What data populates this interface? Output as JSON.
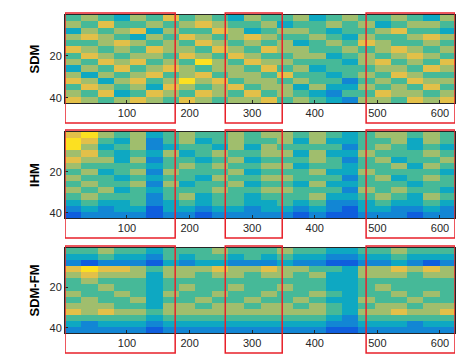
{
  "chart_data": [
    {
      "type": "heatmap",
      "ylabel": "SDM",
      "x": [
        14,
        40,
        66,
        92,
        118,
        144,
        170,
        196,
        222,
        248,
        274,
        300,
        326,
        352,
        378,
        404,
        430,
        456,
        482,
        508,
        534,
        560,
        586,
        612
      ],
      "y": [
        2,
        5,
        8,
        11,
        14,
        17,
        20,
        23,
        26,
        29,
        32,
        35,
        38,
        41
      ],
      "xlim": [
        1,
        624
      ],
      "ylim": [
        42.5,
        0.5
      ],
      "xticks": [
        100,
        200,
        300,
        400,
        500,
        600
      ],
      "yticks": [
        20,
        40
      ],
      "zlim": [
        0.1,
        0.85
      ],
      "regions": {
        "color": "#e8202a",
        "x": [
          [
            1,
            177
          ],
          [
            257,
            348
          ],
          [
            482,
            624
          ]
        ]
      },
      "z": [
        [
          0.5,
          0.6,
          0.5,
          0.4,
          0.6,
          0.5,
          0.7,
          0.5,
          0.6,
          0.5,
          0.4,
          0.6,
          0.5,
          0.5,
          0.6,
          0.4,
          0.5,
          0.6,
          0.5,
          0.5,
          0.6,
          0.5,
          0.4,
          0.6
        ],
        [
          0.6,
          0.5,
          0.7,
          0.5,
          0.5,
          0.6,
          0.5,
          0.6,
          0.7,
          0.6,
          0.5,
          0.5,
          0.6,
          0.4,
          0.5,
          0.5,
          0.6,
          0.5,
          0.6,
          0.4,
          0.5,
          0.6,
          0.6,
          0.5
        ],
        [
          0.4,
          0.6,
          0.5,
          0.6,
          0.7,
          0.4,
          0.6,
          0.5,
          0.5,
          0.7,
          0.6,
          0.4,
          0.5,
          0.6,
          0.6,
          0.5,
          0.4,
          0.5,
          0.5,
          0.6,
          0.7,
          0.5,
          0.5,
          0.4
        ],
        [
          0.6,
          0.7,
          0.6,
          0.5,
          0.4,
          0.6,
          0.5,
          0.7,
          0.6,
          0.5,
          0.6,
          0.7,
          0.6,
          0.5,
          0.5,
          0.6,
          0.5,
          0.4,
          0.6,
          0.5,
          0.5,
          0.6,
          0.7,
          0.6
        ],
        [
          0.5,
          0.5,
          0.6,
          0.7,
          0.6,
          0.5,
          0.6,
          0.5,
          0.7,
          0.6,
          0.5,
          0.6,
          0.5,
          0.6,
          0.4,
          0.5,
          0.6,
          0.5,
          0.7,
          0.6,
          0.5,
          0.5,
          0.6,
          0.5
        ],
        [
          0.7,
          0.6,
          0.5,
          0.6,
          0.5,
          0.7,
          0.6,
          0.6,
          0.5,
          0.7,
          0.6,
          0.5,
          0.7,
          0.6,
          0.6,
          0.5,
          0.5,
          0.6,
          0.5,
          0.6,
          0.7,
          0.6,
          0.5,
          0.6
        ],
        [
          0.5,
          0.7,
          0.6,
          0.5,
          0.6,
          0.6,
          0.5,
          0.7,
          0.6,
          0.5,
          0.7,
          0.6,
          0.5,
          0.5,
          0.6,
          0.6,
          0.4,
          0.5,
          0.6,
          0.5,
          0.6,
          0.7,
          0.6,
          0.5
        ],
        [
          0.6,
          0.5,
          0.7,
          0.6,
          0.7,
          0.5,
          0.6,
          0.5,
          0.8,
          0.6,
          0.5,
          0.7,
          0.6,
          0.6,
          0.5,
          0.5,
          0.5,
          0.4,
          0.6,
          0.7,
          0.5,
          0.6,
          0.5,
          0.7
        ],
        [
          0.4,
          0.6,
          0.5,
          0.7,
          0.5,
          0.6,
          0.7,
          0.6,
          0.5,
          0.6,
          0.6,
          0.5,
          0.7,
          0.5,
          0.6,
          0.4,
          0.5,
          0.5,
          0.5,
          0.6,
          0.6,
          0.5,
          0.7,
          0.6
        ],
        [
          0.6,
          0.4,
          0.6,
          0.5,
          0.6,
          0.7,
          0.5,
          0.6,
          0.7,
          0.5,
          0.6,
          0.6,
          0.5,
          0.7,
          0.5,
          0.5,
          0.4,
          0.5,
          0.6,
          0.5,
          0.7,
          0.6,
          0.5,
          0.5
        ],
        [
          0.7,
          0.6,
          0.4,
          0.6,
          0.7,
          0.5,
          0.6,
          0.8,
          0.6,
          0.7,
          0.5,
          0.6,
          0.6,
          0.5,
          0.6,
          0.5,
          0.5,
          0.3,
          0.5,
          0.6,
          0.5,
          0.7,
          0.6,
          0.6
        ],
        [
          0.5,
          0.7,
          0.6,
          0.5,
          0.6,
          0.4,
          0.7,
          0.6,
          0.5,
          0.6,
          0.7,
          0.5,
          0.6,
          0.6,
          0.4,
          0.6,
          0.4,
          0.4,
          0.6,
          0.5,
          0.6,
          0.5,
          0.7,
          0.5
        ],
        [
          0.6,
          0.5,
          0.7,
          0.4,
          0.5,
          0.7,
          0.6,
          0.5,
          0.7,
          0.6,
          0.5,
          0.7,
          0.5,
          0.6,
          0.5,
          0.4,
          0.3,
          0.5,
          0.5,
          0.7,
          0.6,
          0.6,
          0.5,
          0.6
        ],
        [
          0.7,
          0.6,
          0.5,
          0.6,
          0.7,
          0.6,
          0.5,
          0.7,
          0.6,
          0.5,
          0.6,
          0.6,
          0.7,
          0.5,
          0.6,
          0.5,
          0.4,
          0.3,
          0.6,
          0.6,
          0.5,
          0.7,
          0.6,
          0.7
        ]
      ]
    },
    {
      "type": "heatmap",
      "ylabel": "IHM",
      "x": [
        14,
        40,
        66,
        92,
        118,
        144,
        170,
        196,
        222,
        248,
        274,
        300,
        326,
        352,
        378,
        404,
        430,
        456,
        482,
        508,
        534,
        560,
        586,
        612
      ],
      "y": [
        2,
        5,
        8,
        11,
        14,
        17,
        20,
        23,
        26,
        29,
        32,
        35,
        38,
        41
      ],
      "xlim": [
        1,
        624
      ],
      "ylim": [
        42.5,
        0.5
      ],
      "xticks": [
        100,
        200,
        300,
        400,
        500,
        600
      ],
      "yticks": [
        20,
        40
      ],
      "zlim": [
        0.1,
        0.85
      ],
      "regions": {
        "color": "#e8202a",
        "x": [
          [
            1,
            177
          ],
          [
            257,
            348
          ],
          [
            482,
            624
          ]
        ]
      },
      "z": [
        [
          0.7,
          0.8,
          0.6,
          0.5,
          0.6,
          0.4,
          0.5,
          0.6,
          0.5,
          0.5,
          0.6,
          0.5,
          0.6,
          0.6,
          0.5,
          0.6,
          0.5,
          0.4,
          0.5,
          0.6,
          0.6,
          0.5,
          0.6,
          0.5
        ],
        [
          0.8,
          0.7,
          0.5,
          0.4,
          0.6,
          0.3,
          0.5,
          0.6,
          0.4,
          0.5,
          0.6,
          0.5,
          0.5,
          0.6,
          0.4,
          0.6,
          0.4,
          0.4,
          0.5,
          0.5,
          0.6,
          0.4,
          0.6,
          0.5
        ],
        [
          0.8,
          0.6,
          0.4,
          0.5,
          0.6,
          0.3,
          0.4,
          0.5,
          0.5,
          0.4,
          0.6,
          0.4,
          0.6,
          0.5,
          0.5,
          0.5,
          0.5,
          0.3,
          0.5,
          0.6,
          0.5,
          0.4,
          0.5,
          0.4
        ],
        [
          0.6,
          0.7,
          0.5,
          0.4,
          0.5,
          0.4,
          0.6,
          0.4,
          0.5,
          0.6,
          0.5,
          0.5,
          0.6,
          0.6,
          0.4,
          0.6,
          0.4,
          0.4,
          0.6,
          0.5,
          0.5,
          0.5,
          0.6,
          0.5
        ],
        [
          0.7,
          0.6,
          0.6,
          0.4,
          0.6,
          0.3,
          0.5,
          0.5,
          0.4,
          0.5,
          0.6,
          0.4,
          0.5,
          0.5,
          0.5,
          0.6,
          0.5,
          0.3,
          0.5,
          0.6,
          0.4,
          0.5,
          0.5,
          0.6
        ],
        [
          0.6,
          0.5,
          0.5,
          0.5,
          0.5,
          0.4,
          0.5,
          0.6,
          0.5,
          0.6,
          0.5,
          0.5,
          0.6,
          0.6,
          0.4,
          0.5,
          0.5,
          0.4,
          0.5,
          0.5,
          0.6,
          0.4,
          0.6,
          0.5
        ],
        [
          0.5,
          0.6,
          0.4,
          0.5,
          0.6,
          0.3,
          0.6,
          0.5,
          0.5,
          0.5,
          0.6,
          0.4,
          0.5,
          0.5,
          0.5,
          0.6,
          0.4,
          0.4,
          0.6,
          0.5,
          0.5,
          0.5,
          0.5,
          0.4
        ],
        [
          0.6,
          0.5,
          0.5,
          0.4,
          0.5,
          0.4,
          0.5,
          0.5,
          0.4,
          0.6,
          0.5,
          0.5,
          0.6,
          0.6,
          0.5,
          0.5,
          0.5,
          0.3,
          0.5,
          0.6,
          0.4,
          0.5,
          0.6,
          0.5
        ],
        [
          0.5,
          0.6,
          0.5,
          0.5,
          0.6,
          0.3,
          0.6,
          0.4,
          0.5,
          0.5,
          0.6,
          0.4,
          0.5,
          0.5,
          0.4,
          0.6,
          0.4,
          0.4,
          0.5,
          0.5,
          0.5,
          0.4,
          0.5,
          0.5
        ],
        [
          0.6,
          0.5,
          0.6,
          0.4,
          0.5,
          0.4,
          0.5,
          0.5,
          0.5,
          0.6,
          0.5,
          0.5,
          0.6,
          0.6,
          0.5,
          0.5,
          0.5,
          0.3,
          0.6,
          0.5,
          0.6,
          0.5,
          0.5,
          0.4
        ],
        [
          0.5,
          0.6,
          0.5,
          0.5,
          0.5,
          0.3,
          0.5,
          0.6,
          0.4,
          0.5,
          0.5,
          0.4,
          0.5,
          0.5,
          0.5,
          0.6,
          0.4,
          0.4,
          0.5,
          0.6,
          0.5,
          0.4,
          0.6,
          0.5
        ],
        [
          0.4,
          0.5,
          0.4,
          0.4,
          0.5,
          0.3,
          0.4,
          0.5,
          0.4,
          0.5,
          0.5,
          0.4,
          0.4,
          0.5,
          0.4,
          0.5,
          0.3,
          0.3,
          0.4,
          0.5,
          0.4,
          0.4,
          0.5,
          0.4
        ],
        [
          0.3,
          0.4,
          0.3,
          0.4,
          0.4,
          0.2,
          0.4,
          0.4,
          0.3,
          0.4,
          0.4,
          0.3,
          0.4,
          0.4,
          0.3,
          0.4,
          0.3,
          0.2,
          0.4,
          0.4,
          0.3,
          0.3,
          0.4,
          0.3
        ],
        [
          0.2,
          0.3,
          0.3,
          0.3,
          0.3,
          0.2,
          0.3,
          0.3,
          0.2,
          0.3,
          0.3,
          0.3,
          0.3,
          0.3,
          0.2,
          0.3,
          0.2,
          0.2,
          0.3,
          0.3,
          0.3,
          0.2,
          0.3,
          0.3
        ]
      ]
    },
    {
      "type": "heatmap",
      "ylabel": "SDM-FM",
      "x": [
        14,
        40,
        66,
        92,
        118,
        144,
        170,
        196,
        222,
        248,
        274,
        300,
        326,
        352,
        378,
        404,
        430,
        456,
        482,
        508,
        534,
        560,
        586,
        612
      ],
      "y": [
        2,
        5,
        8,
        11,
        14,
        17,
        20,
        23,
        26,
        29,
        32,
        35,
        38,
        41
      ],
      "xlim": [
        1,
        624
      ],
      "ylim": [
        42.5,
        0.5
      ],
      "xticks": [
        100,
        200,
        300,
        400,
        500,
        600
      ],
      "yticks": [
        20,
        40
      ],
      "zlim": [
        0.1,
        0.85
      ],
      "regions": {
        "color": "#e8202a",
        "x": [
          [
            1,
            177
          ],
          [
            257,
            348
          ],
          [
            482,
            624
          ]
        ]
      },
      "z": [
        [
          0.5,
          0.5,
          0.6,
          0.5,
          0.5,
          0.4,
          0.5,
          0.5,
          0.5,
          0.6,
          0.5,
          0.5,
          0.5,
          0.6,
          0.5,
          0.5,
          0.4,
          0.4,
          0.5,
          0.5,
          0.6,
          0.5,
          0.5,
          0.5
        ],
        [
          0.4,
          0.4,
          0.5,
          0.4,
          0.4,
          0.3,
          0.5,
          0.4,
          0.5,
          0.5,
          0.4,
          0.5,
          0.4,
          0.5,
          0.4,
          0.4,
          0.3,
          0.3,
          0.4,
          0.4,
          0.5,
          0.4,
          0.4,
          0.4
        ],
        [
          0.3,
          0.2,
          0.3,
          0.3,
          0.3,
          0.2,
          0.4,
          0.3,
          0.4,
          0.4,
          0.3,
          0.3,
          0.3,
          0.4,
          0.3,
          0.3,
          0.2,
          0.2,
          0.3,
          0.3,
          0.4,
          0.3,
          0.2,
          0.3
        ],
        [
          0.7,
          0.8,
          0.7,
          0.7,
          0.6,
          0.5,
          0.6,
          0.6,
          0.6,
          0.7,
          0.6,
          0.6,
          0.7,
          0.6,
          0.6,
          0.5,
          0.5,
          0.4,
          0.6,
          0.6,
          0.7,
          0.6,
          0.7,
          0.6
        ],
        [
          0.6,
          0.7,
          0.6,
          0.6,
          0.6,
          0.4,
          0.6,
          0.6,
          0.5,
          0.6,
          0.6,
          0.5,
          0.6,
          0.6,
          0.5,
          0.6,
          0.4,
          0.4,
          0.6,
          0.6,
          0.6,
          0.5,
          0.6,
          0.6
        ],
        [
          0.5,
          0.6,
          0.5,
          0.5,
          0.5,
          0.4,
          0.5,
          0.5,
          0.5,
          0.5,
          0.5,
          0.5,
          0.5,
          0.5,
          0.5,
          0.5,
          0.4,
          0.4,
          0.5,
          0.5,
          0.5,
          0.5,
          0.5,
          0.5
        ],
        [
          0.5,
          0.5,
          0.6,
          0.5,
          0.5,
          0.4,
          0.5,
          0.6,
          0.5,
          0.5,
          0.6,
          0.5,
          0.5,
          0.6,
          0.5,
          0.5,
          0.4,
          0.4,
          0.5,
          0.6,
          0.5,
          0.5,
          0.5,
          0.5
        ],
        [
          0.6,
          0.5,
          0.5,
          0.6,
          0.5,
          0.4,
          0.6,
          0.5,
          0.5,
          0.6,
          0.5,
          0.5,
          0.6,
          0.5,
          0.5,
          0.6,
          0.5,
          0.4,
          0.5,
          0.5,
          0.6,
          0.5,
          0.6,
          0.5
        ],
        [
          0.5,
          0.6,
          0.5,
          0.5,
          0.6,
          0.4,
          0.5,
          0.5,
          0.6,
          0.5,
          0.5,
          0.6,
          0.5,
          0.5,
          0.6,
          0.5,
          0.4,
          0.4,
          0.6,
          0.5,
          0.5,
          0.6,
          0.5,
          0.5
        ],
        [
          0.6,
          0.6,
          0.6,
          0.5,
          0.5,
          0.4,
          0.6,
          0.6,
          0.5,
          0.6,
          0.6,
          0.5,
          0.6,
          0.6,
          0.5,
          0.6,
          0.5,
          0.4,
          0.5,
          0.6,
          0.6,
          0.5,
          0.6,
          0.6
        ],
        [
          0.7,
          0.6,
          0.7,
          0.6,
          0.6,
          0.5,
          0.6,
          0.6,
          0.6,
          0.6,
          0.6,
          0.6,
          0.6,
          0.6,
          0.6,
          0.6,
          0.5,
          0.4,
          0.6,
          0.6,
          0.7,
          0.6,
          0.6,
          0.7
        ],
        [
          0.5,
          0.5,
          0.5,
          0.5,
          0.5,
          0.4,
          0.5,
          0.5,
          0.5,
          0.5,
          0.5,
          0.5,
          0.5,
          0.5,
          0.5,
          0.5,
          0.4,
          0.3,
          0.5,
          0.5,
          0.5,
          0.5,
          0.5,
          0.5
        ],
        [
          0.4,
          0.3,
          0.4,
          0.4,
          0.4,
          0.3,
          0.4,
          0.4,
          0.4,
          0.4,
          0.4,
          0.4,
          0.4,
          0.4,
          0.4,
          0.4,
          0.3,
          0.3,
          0.4,
          0.4,
          0.4,
          0.3,
          0.4,
          0.4
        ],
        [
          0.3,
          0.3,
          0.3,
          0.3,
          0.3,
          0.2,
          0.3,
          0.3,
          0.3,
          0.3,
          0.3,
          0.3,
          0.3,
          0.3,
          0.3,
          0.3,
          0.2,
          0.2,
          0.3,
          0.3,
          0.3,
          0.3,
          0.3,
          0.3
        ]
      ]
    }
  ]
}
